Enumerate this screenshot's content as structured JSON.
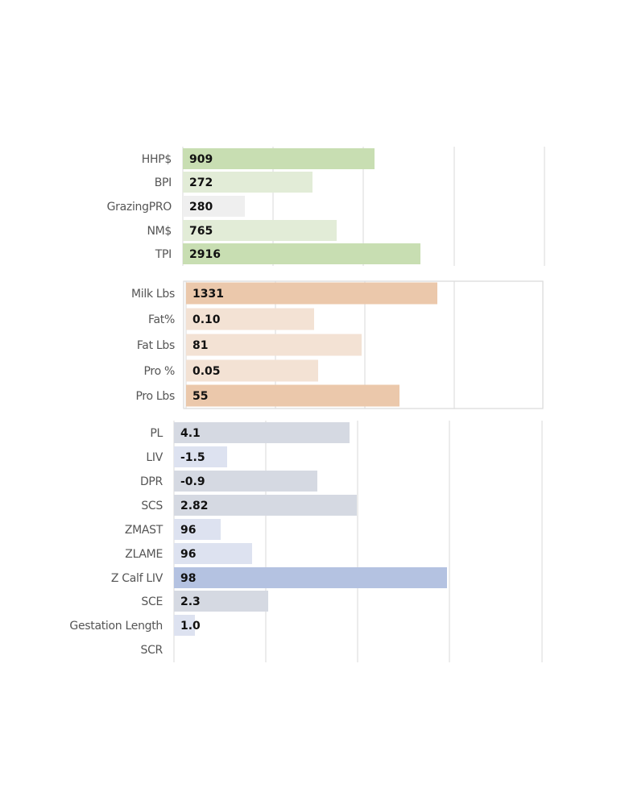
{
  "chart_data": [
    {
      "type": "bar",
      "orientation": "horizontal",
      "title": "",
      "categories": [
        "HHP$",
        "BPI",
        "GrazingPRO",
        "NM$",
        "TPI"
      ],
      "values": [
        "909",
        "272",
        "280",
        "765",
        "2916"
      ],
      "colors": [
        "#c8deb2",
        "#e2ecd7",
        "#efefef",
        "#e2ecd7",
        "#c8deb2"
      ],
      "grid": true
    },
    {
      "type": "bar",
      "orientation": "horizontal",
      "title": "",
      "categories": [
        "Milk Lbs",
        "Fat%",
        "Fat Lbs",
        "Pro %",
        "Pro Lbs"
      ],
      "values": [
        "1331",
        "0.10",
        "81",
        "0.05",
        "55"
      ],
      "colors": [
        "#ebc8ab",
        "#f3e2d4",
        "#f3e2d4",
        "#f3e2d4",
        "#ebc8ab"
      ],
      "grid": true
    },
    {
      "type": "bar",
      "orientation": "horizontal",
      "title": "",
      "categories": [
        "PL",
        "LIV",
        "DPR",
        "SCS",
        "ZMAST",
        "ZLAME",
        "Z Calf LIV",
        "SCE",
        "Gestation Length",
        "SCR"
      ],
      "values": [
        "4.1",
        "-1.5",
        "-0.9",
        "2.82",
        "96",
        "96",
        "98",
        "2.3",
        "1.0",
        ""
      ],
      "colors": [
        "#d5d9e2",
        "#dde2f0",
        "#d5d9e2",
        "#d5d9e2",
        "#dde2f0",
        "#dde2f0",
        "#b4c2e1",
        "#d5d9e2",
        "#dde2f0",
        "#ffffff"
      ],
      "grid": true
    }
  ]
}
